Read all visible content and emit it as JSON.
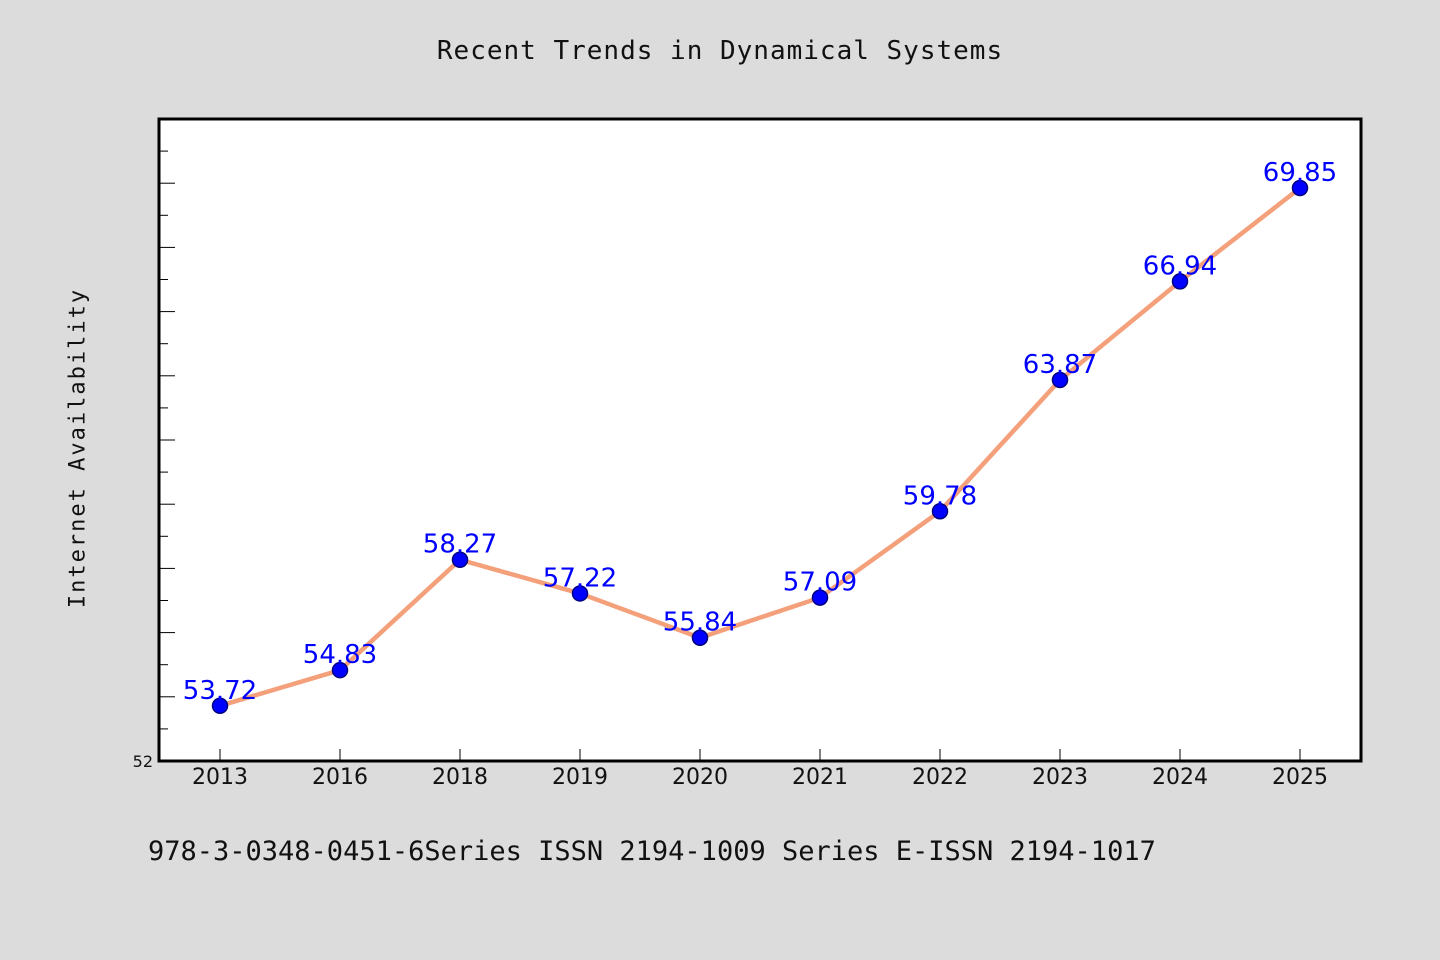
{
  "chart_data": {
    "type": "line",
    "title": "Recent Trends in Dynamical Systems",
    "xlabel": "",
    "ylabel": "Internet Availability",
    "categories": [
      "2013",
      "2016",
      "2018",
      "2019",
      "2020",
      "2021",
      "2022",
      "2023",
      "2024",
      "2025"
    ],
    "series": [
      {
        "values": [
          53.72,
          54.83,
          58.27,
          57.22,
          55.84,
          57.09,
          59.78,
          63.87,
          66.94,
          69.85
        ]
      }
    ],
    "data_labels": [
      "53.72",
      "54.83",
      "58.27",
      "57.22",
      "55.84",
      "57.09",
      "59.78",
      "63.87",
      "66.94",
      "69.85"
    ],
    "ytick_labels": [
      "52"
    ],
    "ylim": [
      52,
      72
    ],
    "grid": false,
    "legend": "none",
    "colors": {
      "line": "#f4a07a",
      "marker": "#0000ff",
      "marker_edge": "#000080",
      "data_label": "#0000ff",
      "plot_background": "#ffffff",
      "figure_background": "#dcdcdc"
    }
  },
  "footer": {
    "text": "978-3-0348-0451-6Series ISSN 2194-1009 Series E-ISSN 2194-1017"
  }
}
